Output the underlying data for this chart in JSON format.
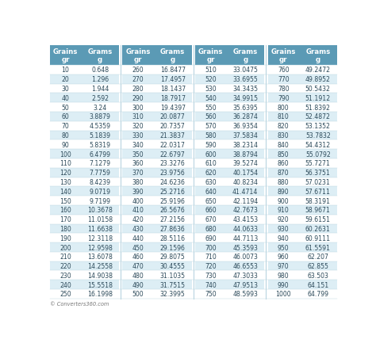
{
  "col_headers": [
    "Grains\ngr",
    "Grams\ng",
    "Grains\ngr",
    "Grams\ng",
    "Grains\ngr",
    "Grams\ng",
    "Grains\ngr",
    "Grams\ng"
  ],
  "header_bg": "#5b9ab5",
  "header_text": "#ffffff",
  "row_odd_bg": "#ddeef5",
  "row_even_bg": "#ffffff",
  "text_color": "#2c4a5a",
  "footer": "© Converters360.com",
  "data": [
    [
      10,
      0.648,
      260,
      16.8477,
      510,
      33.0475,
      760,
      49.2472
    ],
    [
      20,
      1.296,
      270,
      17.4957,
      520,
      33.6955,
      770,
      49.8952
    ],
    [
      30,
      1.944,
      280,
      18.1437,
      530,
      34.3435,
      780,
      50.5432
    ],
    [
      40,
      2.592,
      290,
      18.7917,
      540,
      34.9915,
      790,
      51.1912
    ],
    [
      50,
      3.24,
      300,
      19.4397,
      550,
      35.6395,
      800,
      51.8392
    ],
    [
      60,
      3.8879,
      310,
      20.0877,
      560,
      36.2874,
      810,
      52.4872
    ],
    [
      70,
      4.5359,
      320,
      20.7357,
      570,
      36.9354,
      820,
      53.1352
    ],
    [
      80,
      5.1839,
      330,
      21.3837,
      580,
      37.5834,
      830,
      53.7832
    ],
    [
      90,
      5.8319,
      340,
      22.0317,
      590,
      38.2314,
      840,
      54.4312
    ],
    [
      100,
      6.4799,
      350,
      22.6797,
      600,
      38.8794,
      850,
      55.0792
    ],
    [
      110,
      7.1279,
      360,
      23.3276,
      610,
      39.5274,
      860,
      55.7271
    ],
    [
      120,
      7.7759,
      370,
      23.9756,
      620,
      40.1754,
      870,
      56.3751
    ],
    [
      130,
      8.4239,
      380,
      24.6236,
      630,
      40.8234,
      880,
      57.0231
    ],
    [
      140,
      9.0719,
      390,
      25.2716,
      640,
      41.4714,
      890,
      57.6711
    ],
    [
      150,
      9.7199,
      400,
      25.9196,
      650,
      42.1194,
      900,
      58.3191
    ],
    [
      160,
      10.3678,
      410,
      26.5676,
      660,
      42.7673,
      910,
      58.9671
    ],
    [
      170,
      11.0158,
      420,
      27.2156,
      670,
      43.4153,
      920,
      59.6151
    ],
    [
      180,
      11.6638,
      430,
      27.8636,
      680,
      44.0633,
      930,
      60.2631
    ],
    [
      190,
      12.3118,
      440,
      28.5116,
      690,
      44.7113,
      940,
      60.9111
    ],
    [
      200,
      12.9598,
      450,
      29.1596,
      700,
      45.3593,
      950,
      61.5591
    ],
    [
      210,
      13.6078,
      460,
      29.8075,
      710,
      46.0073,
      960,
      62.207
    ],
    [
      220,
      14.2558,
      470,
      30.4555,
      720,
      46.6553,
      970,
      62.855
    ],
    [
      230,
      14.9038,
      480,
      31.1035,
      730,
      47.3033,
      980,
      63.503
    ],
    [
      240,
      15.5518,
      490,
      31.7515,
      740,
      47.9513,
      990,
      64.151
    ],
    [
      250,
      16.1998,
      500,
      32.3995,
      750,
      48.5993,
      1000,
      64.799
    ]
  ]
}
